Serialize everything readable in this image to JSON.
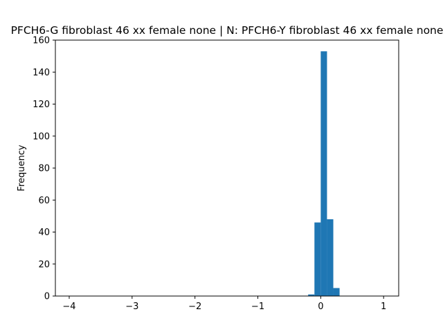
{
  "chart_data": {
    "type": "bar",
    "title": "PFCH6-G fibroblast 46 xx female none | N: PFCH6-Y fibroblast 46 xx female none",
    "xlabel": "",
    "ylabel": "Frequency",
    "xlim": [
      -4.22,
      1.24
    ],
    "ylim": [
      0,
      160
    ],
    "x_ticks": [
      -4,
      -3,
      -2,
      -1,
      0,
      1
    ],
    "y_ticks": [
      0,
      20,
      40,
      60,
      80,
      100,
      120,
      140,
      160
    ],
    "bin_width": 0.1,
    "bins": [
      {
        "x0": -0.2,
        "x1": -0.1,
        "count": 1
      },
      {
        "x0": -0.1,
        "x1": 0.0,
        "count": 46
      },
      {
        "x0": 0.0,
        "x1": 0.1,
        "count": 153
      },
      {
        "x0": 0.1,
        "x1": 0.2,
        "count": 48
      },
      {
        "x0": 0.2,
        "x1": 0.3,
        "count": 5
      }
    ],
    "bar_color": "#1f77b4",
    "grid": false,
    "legend": "none"
  }
}
